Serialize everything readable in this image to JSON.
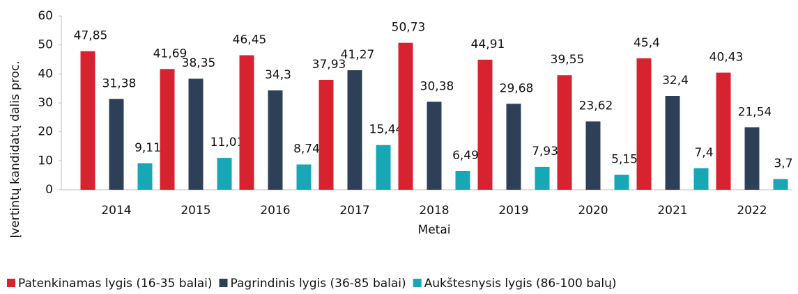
{
  "chart_data": {
    "type": "bar",
    "y_axis_label": "Įvertintų kandidatų dalis proc.",
    "x_axis_label": "Metai",
    "categories": [
      "2014",
      "2015",
      "2016",
      "2017",
      "2018",
      "2019",
      "2020",
      "2021",
      "2022"
    ],
    "series": [
      {
        "name": "Patenkinamas lygis (16-35 balai)",
        "color": "#d7232f",
        "values": [
          47.85,
          41.69,
          46.45,
          37.93,
          50.73,
          44.91,
          39.55,
          45.4,
          40.43
        ],
        "value_labels": [
          "47,85",
          "41,69",
          "46,45",
          "37,93",
          "50,73",
          "44,91",
          "39,55",
          "45,4",
          "40,43"
        ]
      },
      {
        "name": "Pagrindinis lygis (36-85 balai)",
        "color": "#2e4057",
        "values": [
          31.38,
          38.35,
          34.3,
          41.27,
          30.38,
          29.68,
          23.62,
          32.4,
          21.54
        ],
        "value_labels": [
          "31,38",
          "38,35",
          "34,3",
          "41,27",
          "30,38",
          "29,68",
          "23,62",
          "32,4",
          "21,54"
        ]
      },
      {
        "name": "Aukštesnysis lygis (86-100 balų)",
        "color": "#17a7b5",
        "values": [
          9.11,
          11.01,
          8.74,
          15.44,
          6.49,
          7.93,
          5.15,
          7.4,
          3.7
        ],
        "value_labels": [
          "9,11",
          "11,01",
          "8,74",
          "15,44",
          "6,49",
          "7,93",
          "5,15",
          "7,4",
          "3,7"
        ]
      }
    ],
    "ylim": [
      0,
      60
    ],
    "yticks": [
      0,
      10,
      20,
      30,
      40,
      50,
      60
    ],
    "grid": false,
    "legend": "bottom"
  }
}
